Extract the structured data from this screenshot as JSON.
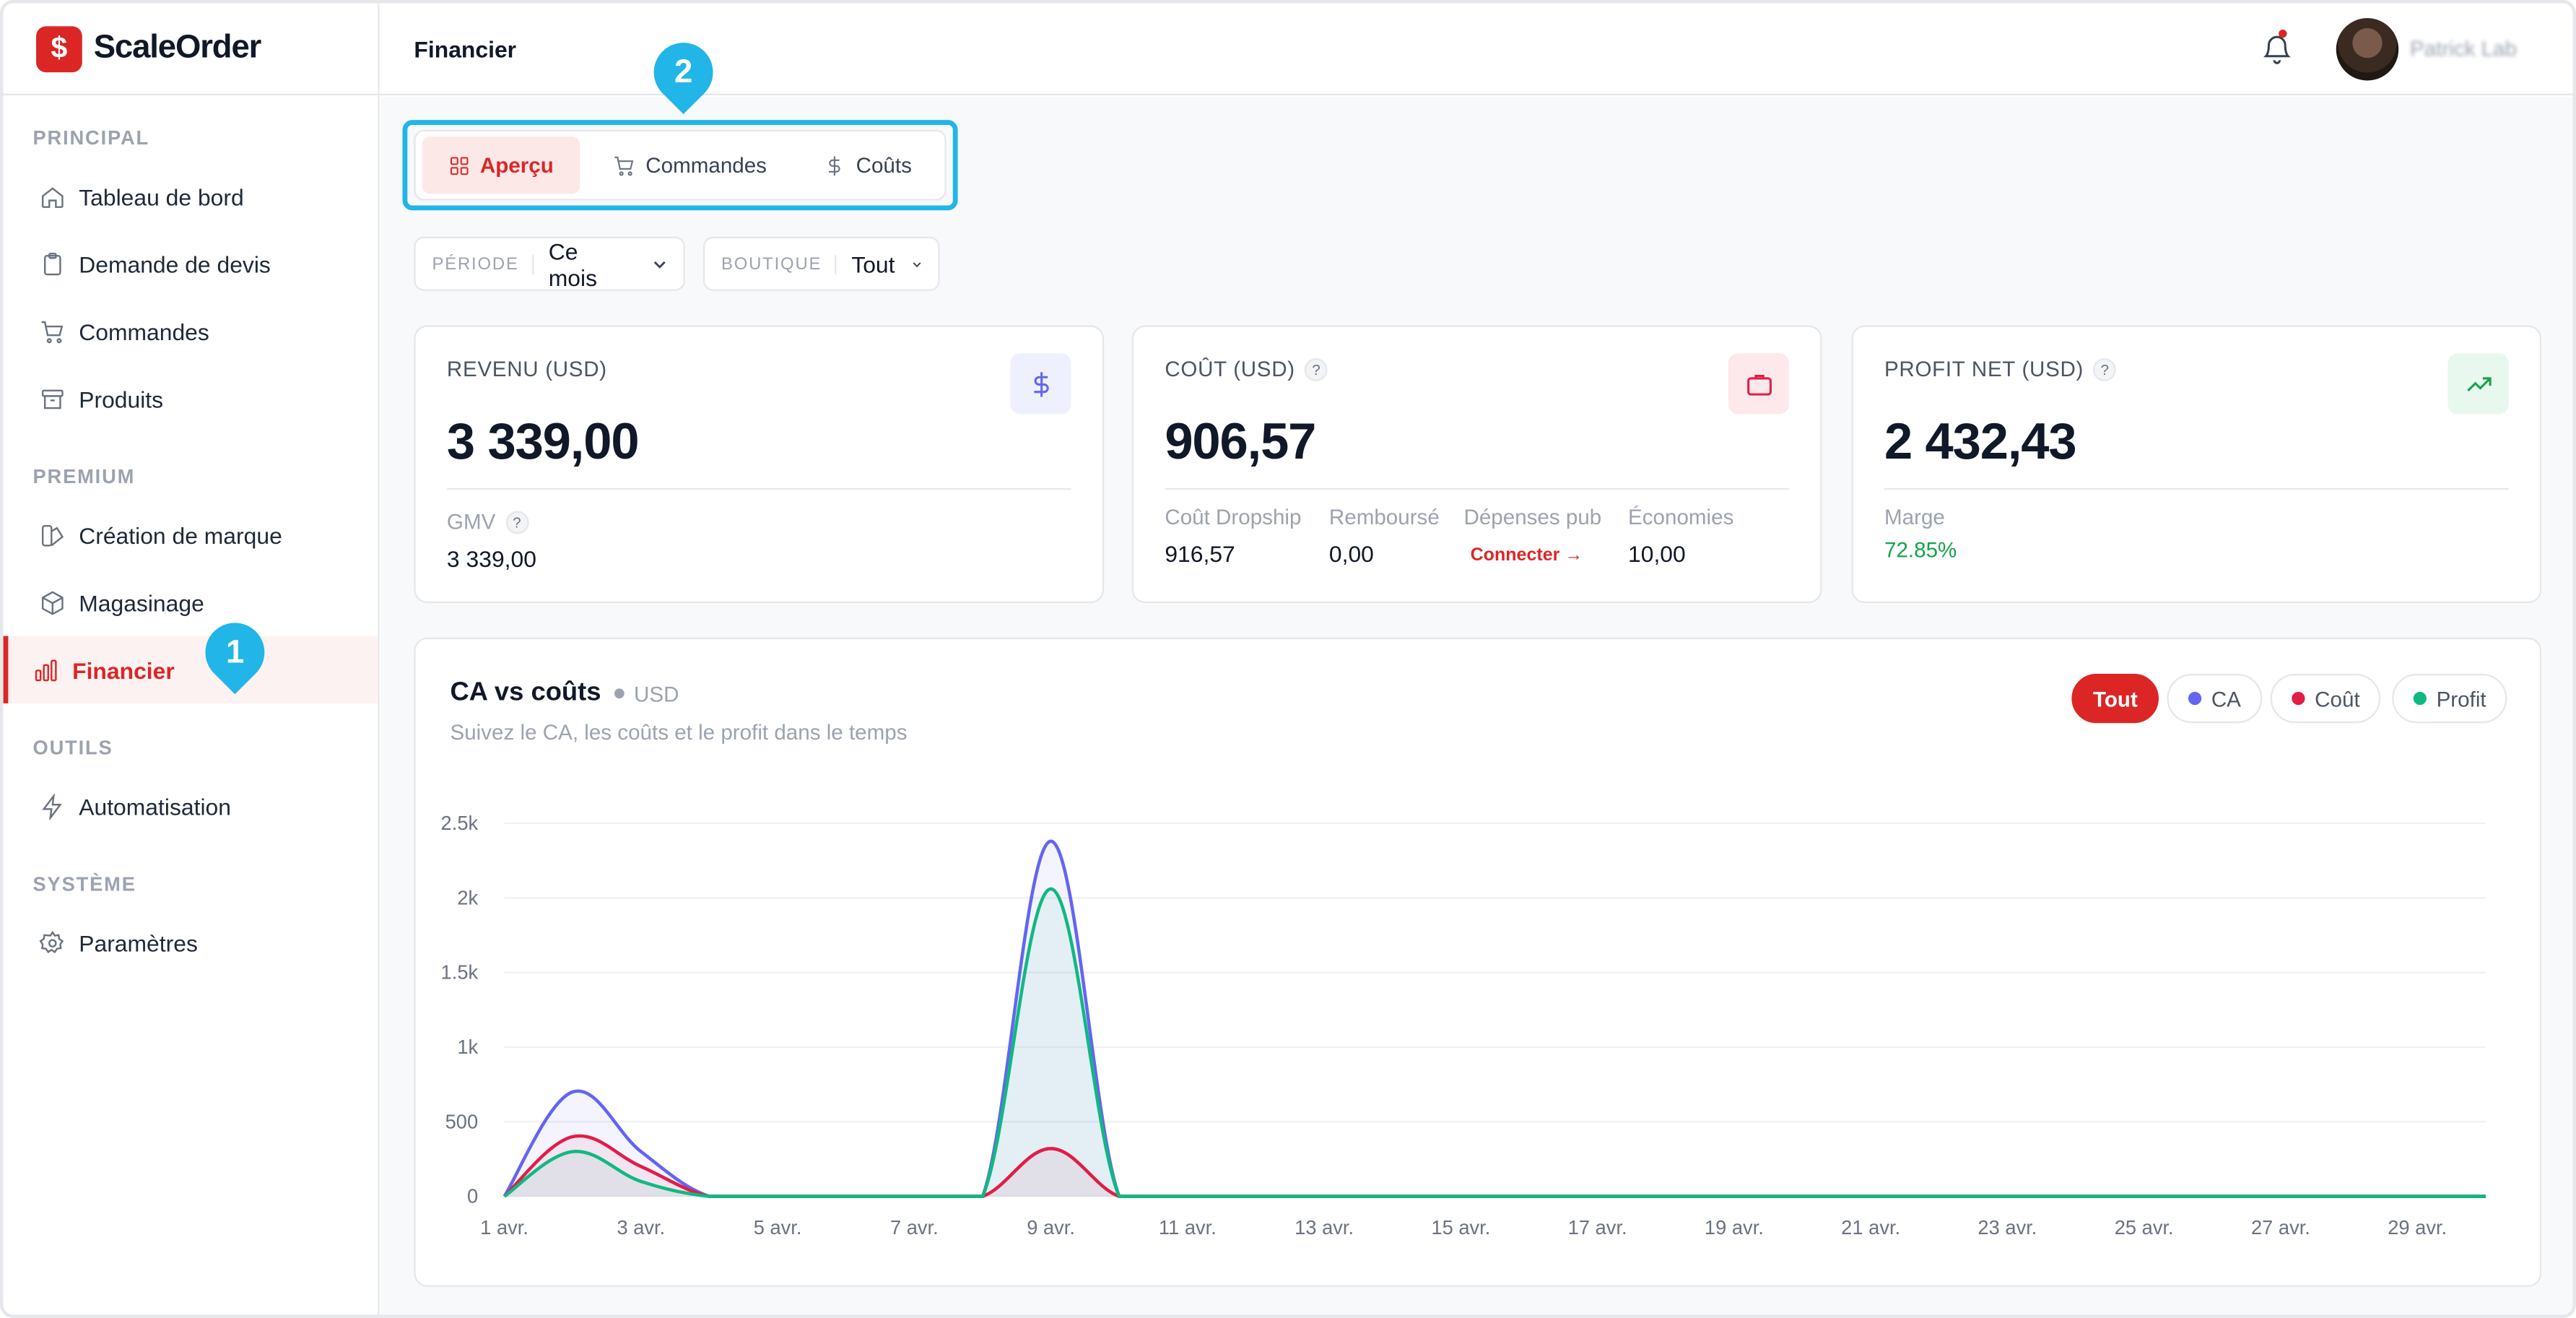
{
  "app": {
    "name": "ScaleOrder",
    "logo_glyph": "$"
  },
  "sidebar": {
    "sections": [
      {
        "label": "PRINCIPAL",
        "items": [
          {
            "label": "Tableau de bord",
            "icon": "home-icon"
          },
          {
            "label": "Demande de devis",
            "icon": "clipboard-icon"
          },
          {
            "label": "Commandes",
            "icon": "cart-icon"
          },
          {
            "label": "Produits",
            "icon": "archive-icon"
          }
        ]
      },
      {
        "label": "PREMIUM",
        "items": [
          {
            "label": "Création de marque",
            "icon": "palette-icon"
          },
          {
            "label": "Magasinage",
            "icon": "box-icon"
          },
          {
            "label": "Financier",
            "icon": "bar-chart-icon",
            "active": true
          }
        ]
      },
      {
        "label": "OUTILS",
        "items": [
          {
            "label": "Automatisation",
            "icon": "zap-icon"
          }
        ]
      },
      {
        "label": "SYSTÈME",
        "items": [
          {
            "label": "Paramètres",
            "icon": "gear-icon"
          }
        ]
      }
    ]
  },
  "callouts": {
    "one": "1",
    "two": "2"
  },
  "header": {
    "title": "Financier",
    "username": "Patrick Lab"
  },
  "tabs": [
    {
      "label": "Aperçu",
      "icon": "grid-icon",
      "active": true
    },
    {
      "label": "Commandes",
      "icon": "cart-icon"
    },
    {
      "label": "Coûts",
      "icon": "dollar-icon"
    }
  ],
  "filters": {
    "period": {
      "label": "PÉRIODE",
      "value": "Ce mois"
    },
    "store": {
      "label": "BOUTIQUE",
      "value": "Tout"
    }
  },
  "cards": {
    "revenue": {
      "title": "REVENU (USD)",
      "value": "3 339,00",
      "gmv_label": "GMV",
      "gmv_value": "3 339,00",
      "icon": "dollar-icon",
      "icon_color": "#6366f1",
      "icon_bg": "#eef0fd"
    },
    "cost": {
      "title": "COÛT (USD)",
      "value": "906,57",
      "icon": "briefcase-icon",
      "icon_color": "#e11d48",
      "icon_bg": "#fde8ec",
      "breakdown": [
        {
          "label": "Coût Dropship",
          "value": "916,57"
        },
        {
          "label": "Remboursé",
          "value": "0,00"
        },
        {
          "label": "Dépenses pub",
          "value": "Connecter →",
          "link": true
        },
        {
          "label": "Économies",
          "value": "10,00"
        }
      ]
    },
    "profit": {
      "title": "PROFIT NET (USD)",
      "value": "2 432,43",
      "margin_label": "Marge",
      "margin_value": "72.85%",
      "icon": "trending-up-icon",
      "icon_color": "#16a34a",
      "icon_bg": "#e8f8ee"
    }
  },
  "chart": {
    "title": "CA vs coûts",
    "unit": "USD",
    "subtitle": "Suivez le CA, les coûts et le profit dans le temps",
    "filters": [
      {
        "label": "Tout",
        "active": true
      },
      {
        "label": "CA",
        "color": "#6366f1"
      },
      {
        "label": "Coût",
        "color": "#e11d48"
      },
      {
        "label": "Profit",
        "color": "#10b981"
      }
    ]
  },
  "chart_data": {
    "type": "area",
    "title": "CA vs coûts",
    "x": [
      "1 avr.",
      "2 avr.",
      "3 avr.",
      "4 avr.",
      "5 avr.",
      "6 avr.",
      "7 avr.",
      "8 avr.",
      "9 avr.",
      "10 avr.",
      "11 avr.",
      "12 avr.",
      "13 avr.",
      "14 avr.",
      "15 avr.",
      "16 avr.",
      "17 avr.",
      "18 avr.",
      "19 avr.",
      "20 avr.",
      "21 avr.",
      "22 avr.",
      "23 avr.",
      "24 avr.",
      "25 avr.",
      "26 avr.",
      "27 avr.",
      "28 avr.",
      "29 avr.",
      "30 avr."
    ],
    "tick_labels": [
      "1 avr.",
      "3 avr.",
      "5 avr.",
      "7 avr.",
      "9 avr.",
      "11 avr.",
      "13 avr.",
      "15 avr.",
      "17 avr.",
      "19 avr.",
      "21 avr.",
      "23 avr.",
      "25 avr.",
      "27 avr.",
      "29 avr."
    ],
    "series": [
      {
        "name": "CA",
        "color": "#6366f1",
        "values": [
          0,
          700,
          300,
          0,
          0,
          0,
          0,
          0,
          2380,
          0,
          0,
          0,
          0,
          0,
          0,
          0,
          0,
          0,
          0,
          0,
          0,
          0,
          0,
          0,
          0,
          0,
          0,
          0,
          0,
          0
        ]
      },
      {
        "name": "Coût",
        "color": "#e11d48",
        "values": [
          0,
          400,
          200,
          0,
          0,
          0,
          0,
          0,
          320,
          0,
          0,
          0,
          0,
          0,
          0,
          0,
          0,
          0,
          0,
          0,
          0,
          0,
          0,
          0,
          0,
          0,
          0,
          0,
          0,
          0
        ]
      },
      {
        "name": "Profit",
        "color": "#10b981",
        "values": [
          0,
          300,
          100,
          0,
          0,
          0,
          0,
          0,
          2060,
          0,
          0,
          0,
          0,
          0,
          0,
          0,
          0,
          0,
          0,
          0,
          0,
          0,
          0,
          0,
          0,
          0,
          0,
          0,
          0,
          0
        ]
      }
    ],
    "y_ticks": [
      "0",
      "500",
      "1k",
      "1.5k",
      "2k",
      "2.5k"
    ],
    "ylim": [
      0,
      2500
    ],
    "grid": true
  }
}
